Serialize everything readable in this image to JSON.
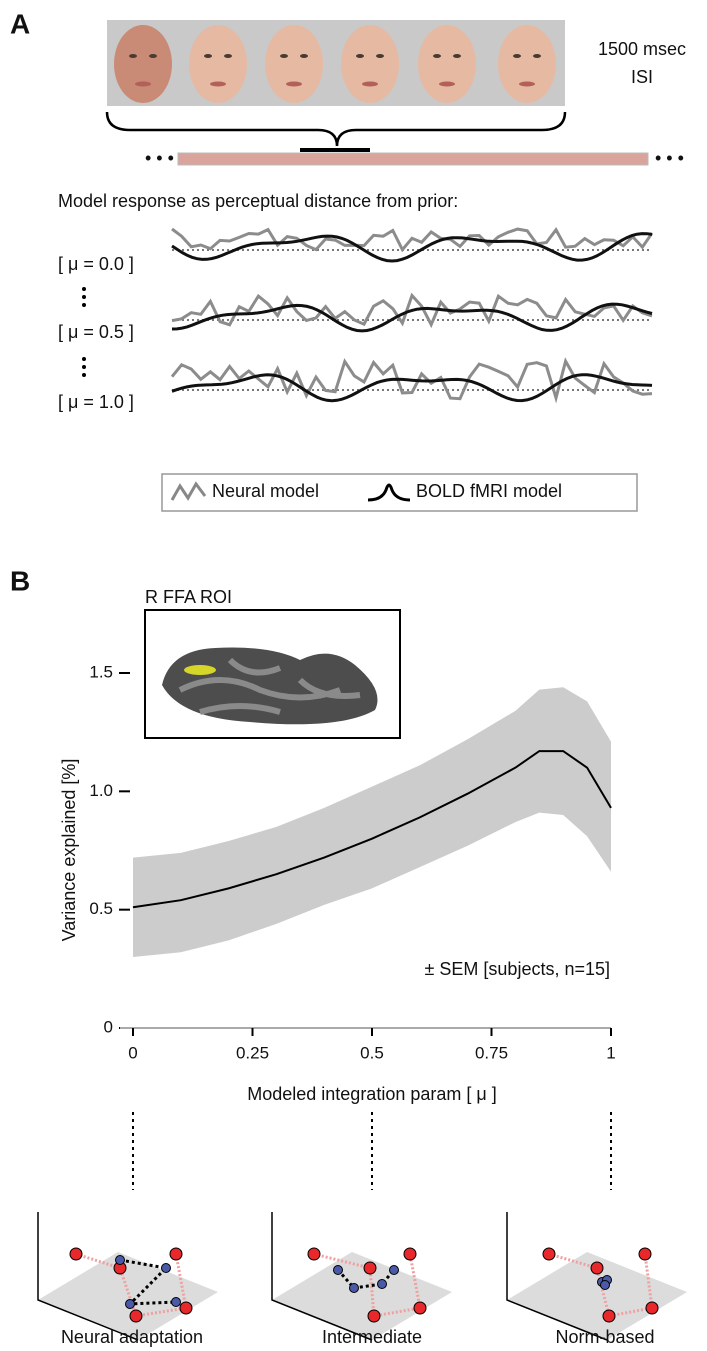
{
  "panel_a": {
    "label": "A",
    "isi": [
      "1500 msec",
      "ISI"
    ],
    "heading": "Model response as perceptual distance from prior:",
    "rows": [
      "[ μ = 0.0 ]",
      "[ μ = 0.5 ]",
      "[ μ = 1.0 ]"
    ],
    "legend": [
      "Neural model",
      "BOLD fMRI model"
    ]
  },
  "chart_data": {
    "type": "line",
    "panel_label": "B",
    "inset_title": "R FFA ROI",
    "ylabel": "Variance explained [%]",
    "xlabel": "Modeled integration param [ μ ]",
    "annotation": "± SEM [subjects, n=15]",
    "x": [
      0,
      0.1,
      0.2,
      0.3,
      0.4,
      0.5,
      0.6,
      0.7,
      0.8,
      0.85,
      0.9,
      0.95,
      1
    ],
    "series": [
      {
        "color": "#000000",
        "band_color": "#cccccc",
        "values": [
          0.51,
          0.54,
          0.59,
          0.65,
          0.72,
          0.8,
          0.89,
          0.99,
          1.1,
          1.17,
          1.17,
          1.1,
          0.93
        ],
        "upper": [
          0.72,
          0.74,
          0.79,
          0.85,
          0.93,
          1.02,
          1.11,
          1.22,
          1.34,
          1.43,
          1.44,
          1.38,
          1.21
        ],
        "lower": [
          0.3,
          0.32,
          0.37,
          0.44,
          0.52,
          0.59,
          0.68,
          0.77,
          0.87,
          0.91,
          0.9,
          0.81,
          0.66
        ]
      }
    ],
    "xlim": [
      0,
      1
    ],
    "ylim": [
      0,
      1.8
    ],
    "xticks": [
      0,
      0.25,
      0.5,
      0.75,
      1
    ],
    "yticks": [
      0,
      0.5,
      {
        "value": 1,
        "label": "1.0"
      },
      1.5
    ]
  },
  "panel_c": {
    "labels": [
      "Neural adaptation",
      "Intermediate",
      "Norm-based"
    ]
  }
}
